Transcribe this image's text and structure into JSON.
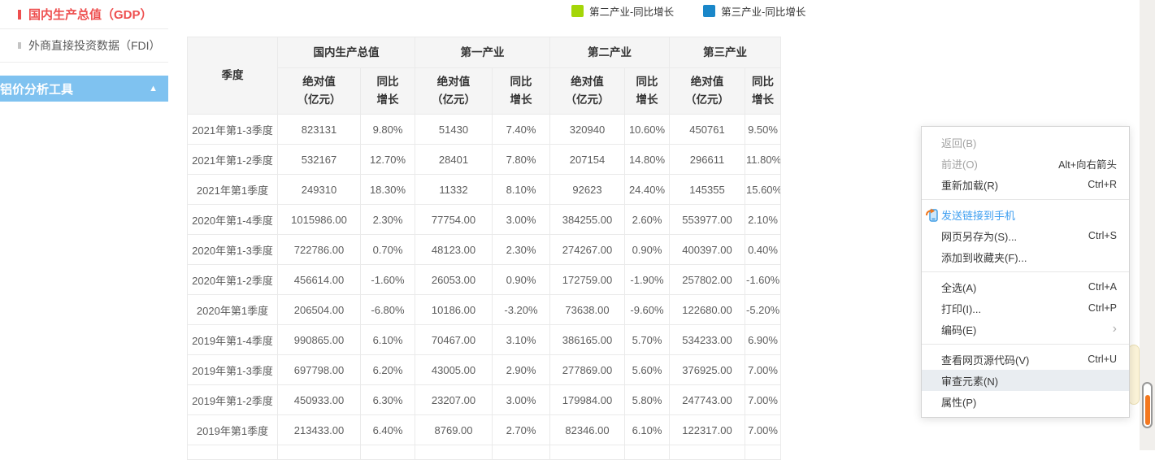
{
  "sidebar": {
    "items": [
      {
        "label": "国内生产总值（GDP）",
        "active": true
      },
      {
        "label": "外商直接投资数据（FDI）",
        "active": false
      }
    ],
    "tool_bar": {
      "label": "铝价分析工具",
      "collapse_icon": "▲",
      "color": "#7fc2f0"
    },
    "accent_color": "#ee4f4f"
  },
  "legend": {
    "items": [
      {
        "label": "第二产业-同比增长",
        "color": "#a4d608"
      },
      {
        "label": "第三产业-同比增长",
        "color": "#1a87c9"
      }
    ]
  },
  "table": {
    "quarter_header": "季度",
    "groups": [
      "国内生产总值",
      "第一产业",
      "第二产业",
      "第三产业"
    ],
    "sub_abs": "绝对值\n（亿元）",
    "sub_growth": "同比\n增长",
    "rows": [
      {
        "quarter": "2021年第1-3季度",
        "values": [
          "823131",
          "9.80%",
          "51430",
          "7.40%",
          "320940",
          "10.60%",
          "450761",
          "9.50%"
        ]
      },
      {
        "quarter": "2021年第1-2季度",
        "values": [
          "532167",
          "12.70%",
          "28401",
          "7.80%",
          "207154",
          "14.80%",
          "296611",
          "11.80%"
        ]
      },
      {
        "quarter": "2021年第1季度",
        "values": [
          "249310",
          "18.30%",
          "11332",
          "8.10%",
          "92623",
          "24.40%",
          "145355",
          "15.60%"
        ]
      },
      {
        "quarter": "2020年第1-4季度",
        "values": [
          "1015986.00",
          "2.30%",
          "77754.00",
          "3.00%",
          "384255.00",
          "2.60%",
          "553977.00",
          "2.10%"
        ]
      },
      {
        "quarter": "2020年第1-3季度",
        "values": [
          "722786.00",
          "0.70%",
          "48123.00",
          "2.30%",
          "274267.00",
          "0.90%",
          "400397.00",
          "0.40%"
        ]
      },
      {
        "quarter": "2020年第1-2季度",
        "values": [
          "456614.00",
          "-1.60%",
          "26053.00",
          "0.90%",
          "172759.00",
          "-1.90%",
          "257802.00",
          "-1.60%"
        ]
      },
      {
        "quarter": "2020年第1季度",
        "values": [
          "206504.00",
          "-6.80%",
          "10186.00",
          "-3.20%",
          "73638.00",
          "-9.60%",
          "122680.00",
          "-5.20%"
        ]
      },
      {
        "quarter": "2019年第1-4季度",
        "values": [
          "990865.00",
          "6.10%",
          "70467.00",
          "3.10%",
          "386165.00",
          "5.70%",
          "534233.00",
          "6.90%"
        ]
      },
      {
        "quarter": "2019年第1-3季度",
        "values": [
          "697798.00",
          "6.20%",
          "43005.00",
          "2.90%",
          "277869.00",
          "5.60%",
          "376925.00",
          "7.00%"
        ]
      },
      {
        "quarter": "2019年第1-2季度",
        "values": [
          "450933.00",
          "6.30%",
          "23207.00",
          "3.00%",
          "179984.00",
          "5.80%",
          "247743.00",
          "7.00%"
        ]
      },
      {
        "quarter": "2019年第1季度",
        "values": [
          "213433.00",
          "6.40%",
          "8769.00",
          "2.70%",
          "82346.00",
          "6.10%",
          "122317.00",
          "7.00%"
        ]
      }
    ]
  },
  "context_menu": {
    "sections": [
      {
        "items": [
          {
            "label": "返回(B)",
            "shortcut": "",
            "disabled": true
          },
          {
            "label": "前进(O)",
            "shortcut": "Alt+向右箭头",
            "disabled": true
          },
          {
            "label": "重新加载(R)",
            "shortcut": "Ctrl+R"
          }
        ]
      },
      {
        "items": [
          {
            "label": "发送链接到手机",
            "shortcut": "",
            "accent": true,
            "icon": "send-to-phone"
          },
          {
            "label": "网页另存为(S)...",
            "shortcut": "Ctrl+S"
          },
          {
            "label": "添加到收藏夹(F)...",
            "shortcut": ""
          }
        ]
      },
      {
        "items": [
          {
            "label": "全选(A)",
            "shortcut": "Ctrl+A"
          },
          {
            "label": "打印(I)...",
            "shortcut": "Ctrl+P"
          },
          {
            "label": "编码(E)",
            "submenu": true
          }
        ]
      },
      {
        "items": [
          {
            "label": "查看网页源代码(V)",
            "shortcut": "Ctrl+U"
          },
          {
            "label": "审查元素(N)",
            "shortcut": "",
            "highlighted": true
          },
          {
            "label": "属性(P)",
            "shortcut": ""
          }
        ]
      }
    ],
    "accent_color": "#3f9ff0"
  },
  "scrollbar": {
    "fill_color": "#f4781f"
  }
}
